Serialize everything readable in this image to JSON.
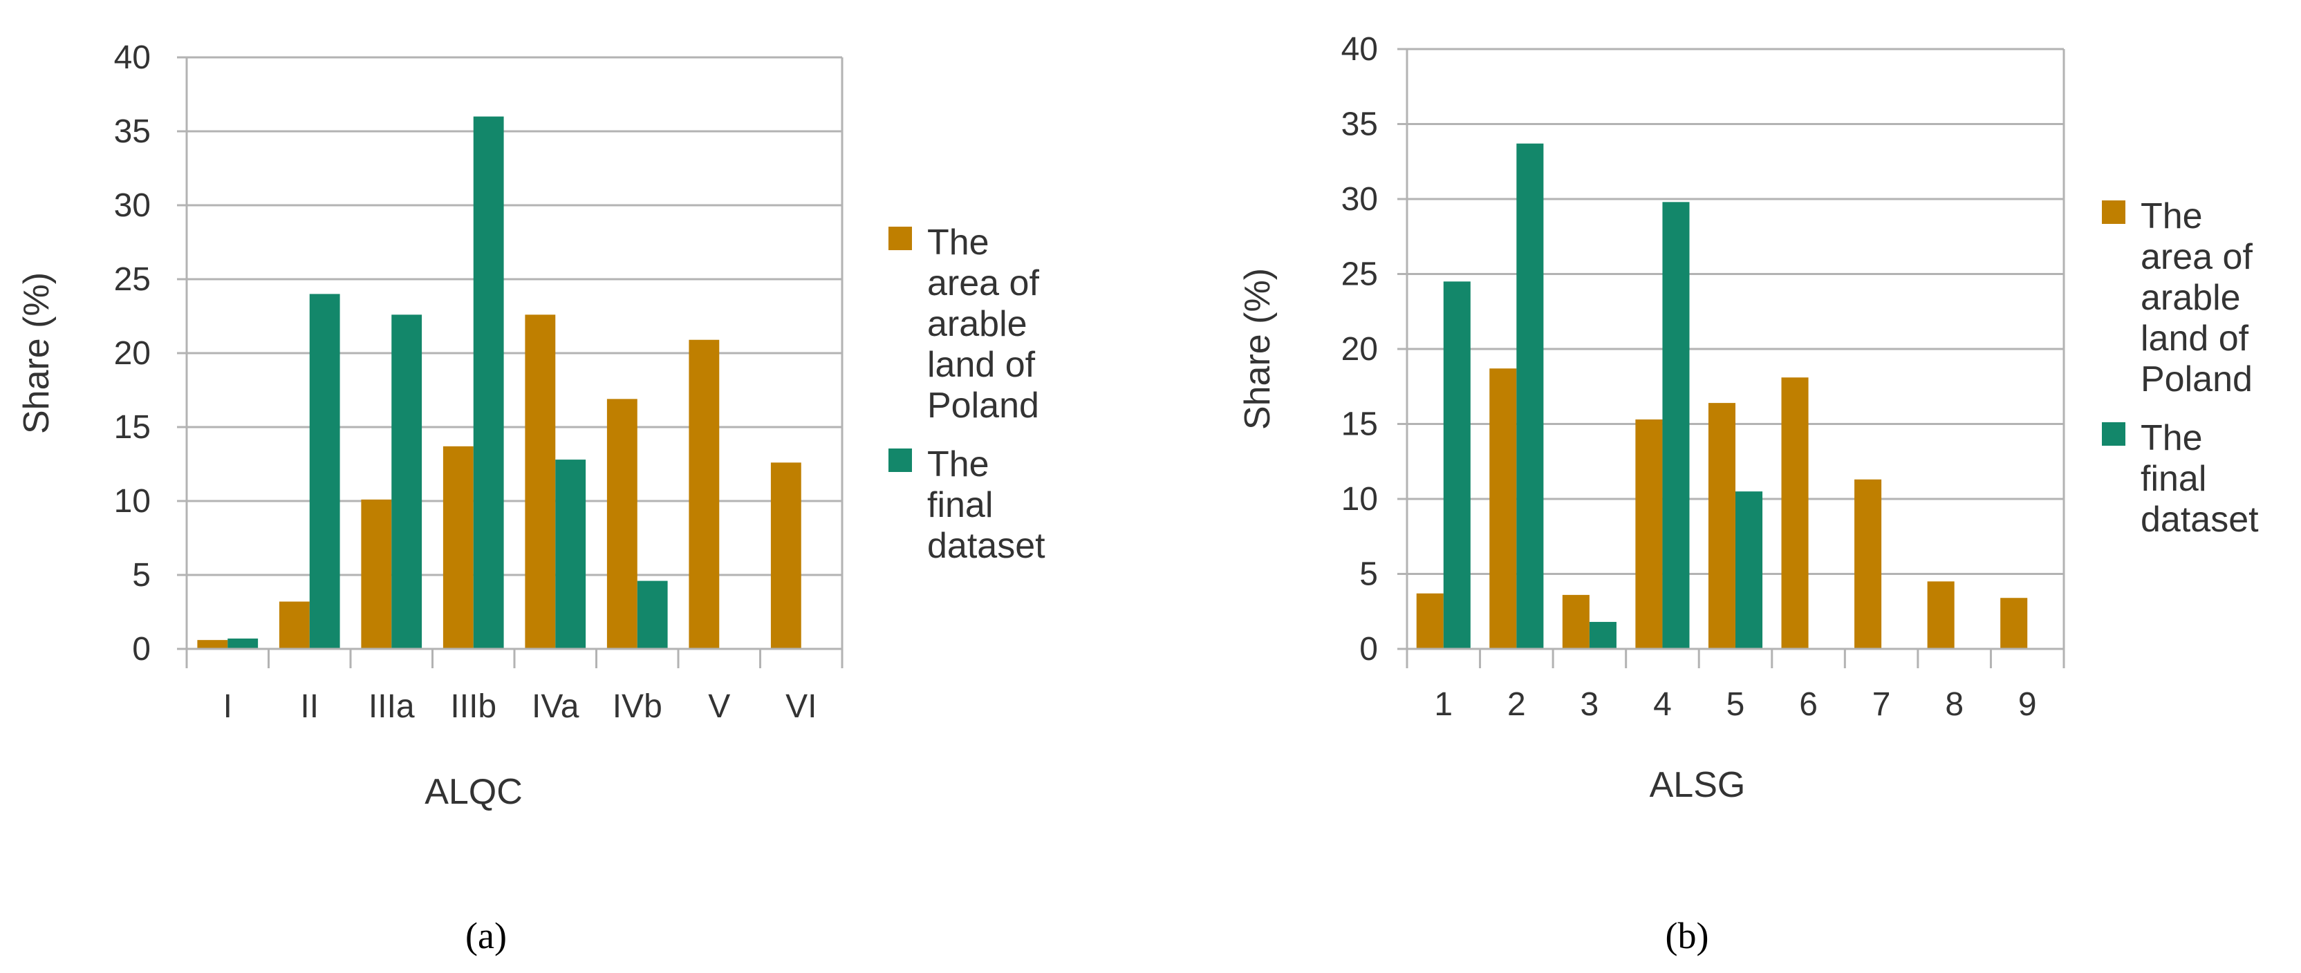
{
  "colors": {
    "area": "#bf7f00",
    "final": "#13876a",
    "grid": "#b3b3b3",
    "text": "#333333"
  },
  "chart_data": [
    {
      "type": "bar",
      "panel_label": "(a)",
      "xlabel": "ALQC",
      "ylabel": "Share (%)",
      "ylim": [
        0,
        40
      ],
      "yticks": [
        0,
        5,
        10,
        15,
        20,
        25,
        30,
        35,
        40
      ],
      "grid": "horizontal",
      "legend_position": "right",
      "categories": [
        "I",
        "II",
        "IIIa",
        "IIIb",
        "IVa",
        "IVb",
        "V",
        "VI"
      ],
      "series": [
        {
          "name": "The area of arable land of Poland",
          "legend_lines": [
            "The",
            "area of",
            "arable",
            "land of",
            "Poland"
          ],
          "color_key": "area",
          "values": [
            0.6,
            3.2,
            10.1,
            13.7,
            22.6,
            16.9,
            20.9,
            12.6
          ]
        },
        {
          "name": "The final dataset",
          "legend_lines": [
            "The",
            "final",
            "dataset"
          ],
          "color_key": "final",
          "values": [
            0.7,
            24.0,
            22.6,
            36.0,
            12.8,
            4.6,
            0,
            0
          ]
        }
      ]
    },
    {
      "type": "bar",
      "panel_label": "(b)",
      "xlabel": "ALSG",
      "ylabel": "Share (%)",
      "ylim": [
        0,
        40
      ],
      "yticks": [
        0,
        5,
        10,
        15,
        20,
        25,
        30,
        35,
        40
      ],
      "grid": "horizontal",
      "legend_position": "right",
      "categories": [
        "1",
        "2",
        "3",
        "4",
        "5",
        "6",
        "7",
        "8",
        "9"
      ],
      "series": [
        {
          "name": "The area of arable land of Poland",
          "legend_lines": [
            "The",
            "area of",
            "arable",
            "land of",
            "Poland"
          ],
          "color_key": "area",
          "values": [
            3.7,
            18.7,
            3.6,
            15.3,
            16.4,
            18.1,
            11.3,
            4.5,
            3.4
          ]
        },
        {
          "name": "The final dataset",
          "legend_lines": [
            "The",
            "final",
            "dataset"
          ],
          "color_key": "final",
          "values": [
            24.5,
            33.7,
            1.8,
            29.8,
            10.5,
            0,
            0,
            0,
            0
          ]
        }
      ]
    }
  ]
}
